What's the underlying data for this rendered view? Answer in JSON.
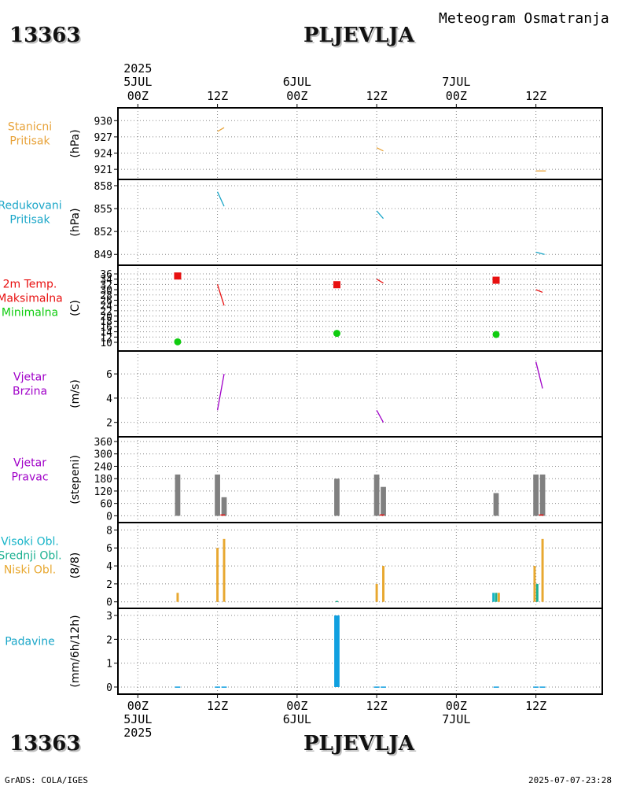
{
  "header": {
    "station_id": "13363",
    "station_name": "PLJEVLJA",
    "meteogram_title": "Meteogram Osmatranja"
  },
  "footer": {
    "left": "GrADS: COLA/IGES",
    "right": "2025-07-07-23:28"
  },
  "colors": {
    "pressure": "#e8a33a",
    "reduced": "#1aa6c8",
    "tmax": "#e81010",
    "tmin": "#10cc10",
    "wind": "#a000c8",
    "grey": "#808080",
    "high_cloud": "#16b4c8",
    "mid_cloud": "#1ab090",
    "low_cloud": "#e8a830",
    "precip": "#10a0e0"
  },
  "time_axis": {
    "top_year": "2025",
    "top_ticks": [
      {
        "t": 0,
        "lines": [
          "5JUL",
          "00Z"
        ]
      },
      {
        "t": 12,
        "lines": [
          "",
          "12Z"
        ]
      },
      {
        "t": 24,
        "lines": [
          "6JUL",
          "00Z"
        ]
      },
      {
        "t": 36,
        "lines": [
          "",
          "12Z"
        ]
      },
      {
        "t": 48,
        "lines": [
          "7JUL",
          "00Z"
        ]
      },
      {
        "t": 60,
        "lines": [
          "",
          "12Z"
        ]
      }
    ],
    "bottom_ticks": [
      {
        "t": 0,
        "lines": [
          "00Z",
          "5JUL",
          "2025"
        ]
      },
      {
        "t": 12,
        "lines": [
          "12Z"
        ]
      },
      {
        "t": 24,
        "lines": [
          "00Z",
          "6JUL"
        ]
      },
      {
        "t": 36,
        "lines": [
          "12Z"
        ]
      },
      {
        "t": 48,
        "lines": [
          "00Z",
          "7JUL"
        ]
      },
      {
        "t": 60,
        "lines": [
          "12Z"
        ]
      }
    ],
    "range_hours": [
      -3,
      70
    ]
  },
  "chart_data": [
    {
      "id": "p1",
      "type": "line",
      "label_lines": [
        "Stanicni",
        "Pritisak"
      ],
      "unit": "(hPa)",
      "label_color": "#e8a33a",
      "ylim": [
        920,
        931.5
      ],
      "yticks": [
        921,
        924,
        927,
        930
      ],
      "series": [
        {
          "name": "Stanicni Pritisak",
          "color": "#e8a33a",
          "segments": [
            [
              [
                12,
                928.0
              ],
              [
                13,
                928.7
              ]
            ],
            [
              [
                36,
                925.0
              ],
              [
                37,
                924.4
              ]
            ],
            [
              [
                60,
                920.7
              ],
              [
                61.5,
                920.7
              ]
            ]
          ]
        }
      ]
    },
    {
      "id": "p2",
      "type": "line",
      "label_lines": [
        "Redukovani",
        "Pritisak"
      ],
      "unit": "(hPa)",
      "label_color": "#1aa6c8",
      "ylim": [
        848.2,
        858.2
      ],
      "yticks": [
        849,
        852,
        855,
        858
      ],
      "series": [
        {
          "name": "Redukovani Pritisak",
          "color": "#1aa6c8",
          "segments": [
            [
              [
                12,
                857.2
              ],
              [
                13,
                855.3
              ]
            ],
            [
              [
                36,
                854.7
              ],
              [
                37,
                853.7
              ]
            ],
            [
              [
                60,
                849.3
              ],
              [
                61.3,
                849.0
              ]
            ]
          ]
        }
      ]
    },
    {
      "id": "p3",
      "type": "line",
      "label_lines": [
        "2m Temp.",
        "Maksimalna",
        "Minimalna"
      ],
      "unit": "(C)",
      "label_colors": [
        "#e81010",
        "#e81010",
        "#10cc10"
      ],
      "ylim": [
        8.5,
        37.5
      ],
      "yticks": [
        10,
        12,
        14,
        16,
        18,
        20,
        22,
        24,
        26,
        28,
        30,
        32,
        34,
        36
      ],
      "series": [
        {
          "name": "2m Temp.",
          "color": "#e81010",
          "segments": [
            [
              [
                12,
                32.0
              ],
              [
                13,
                24.0
              ]
            ],
            [
              [
                36,
                34.0
              ],
              [
                37,
                32.5
              ]
            ],
            [
              [
                60,
                30.0
              ],
              [
                61,
                29.0
              ]
            ]
          ]
        }
      ],
      "markers": [
        {
          "name": "Maksimalna",
          "shape": "square",
          "color": "#e81010",
          "points": [
            [
              6,
              35.2
            ],
            [
              30,
              31.9
            ],
            [
              54,
              33.6
            ]
          ]
        },
        {
          "name": "Minimalna",
          "shape": "circle",
          "color": "#10cc10",
          "points": [
            [
              6,
              10.2
            ],
            [
              30,
              13.4
            ],
            [
              54,
              13.0
            ]
          ]
        }
      ]
    },
    {
      "id": "p4",
      "type": "line",
      "label_lines": [
        "Vjetar",
        "Brzina"
      ],
      "unit": "(m/s)",
      "label_color": "#a000c8",
      "ylim": [
        1.2,
        7.5
      ],
      "yticks": [
        2,
        4,
        6
      ],
      "series": [
        {
          "name": "Vjetar Brzina",
          "color": "#a000c8",
          "segments": [
            [
              [
                12,
                3.0
              ],
              [
                13,
                6.0
              ]
            ],
            [
              [
                36,
                3.0
              ],
              [
                37,
                2.0
              ]
            ],
            [
              [
                60,
                7.0
              ],
              [
                61,
                4.8
              ]
            ]
          ]
        }
      ]
    },
    {
      "id": "p5",
      "type": "bar",
      "label_lines": [
        "Vjetar",
        "Pravac"
      ],
      "unit": "(stepeni)",
      "label_color": "#a000c8",
      "ylim": [
        -10,
        360
      ],
      "yticks": [
        0,
        60,
        120,
        180,
        240,
        300,
        360
      ],
      "bar_width_hours": 0.8,
      "bars": [
        {
          "t": 6,
          "v": 200,
          "color": "#808080"
        },
        {
          "t": 12,
          "v": 200,
          "color": "#808080"
        },
        {
          "t": 13,
          "v": 90,
          "color": "#808080"
        },
        {
          "t": 30,
          "v": 180,
          "color": "#808080"
        },
        {
          "t": 36,
          "v": 200,
          "color": "#808080"
        },
        {
          "t": 37,
          "v": 140,
          "color": "#808080"
        },
        {
          "t": 54,
          "v": 110,
          "color": "#808080"
        },
        {
          "t": 60,
          "v": 200,
          "color": "#808080"
        },
        {
          "t": 61,
          "v": 200,
          "color": "#808080"
        }
      ],
      "ticks_red": [
        12.8,
        36.8,
        60.8
      ]
    },
    {
      "id": "p6",
      "type": "bar",
      "label_lines": [
        "Visoki Obl.",
        "Srednji Obl.",
        "Niski Obl."
      ],
      "unit": "(8/8)",
      "label_colors": [
        "#16b4c8",
        "#1ab090",
        "#e8a830"
      ],
      "ylim": [
        -0.2,
        8.3
      ],
      "yticks": [
        0,
        2,
        4,
        6,
        8
      ],
      "bar_width_hours": 0.35,
      "bars": [
        {
          "t": 6,
          "v": 1,
          "color": "#e8a830"
        },
        {
          "t": 12,
          "v": 6,
          "color": "#e8a830"
        },
        {
          "t": 13,
          "v": 7,
          "color": "#e8a830"
        },
        {
          "t": 30,
          "v": 0.1,
          "color": "#1ab090"
        },
        {
          "t": 36,
          "v": 2,
          "color": "#e8a830"
        },
        {
          "t": 37,
          "v": 4,
          "color": "#e8a830"
        },
        {
          "t": 53.6,
          "v": 1,
          "color": "#16b4c8"
        },
        {
          "t": 54,
          "v": 1,
          "color": "#1ab090"
        },
        {
          "t": 54.4,
          "v": 1,
          "color": "#e8a830"
        },
        {
          "t": 59.8,
          "v": 4,
          "color": "#e8a830"
        },
        {
          "t": 60.2,
          "v": 2,
          "color": "#1ab090"
        },
        {
          "t": 61,
          "v": 7,
          "color": "#e8a830"
        }
      ]
    },
    {
      "id": "p7",
      "type": "bar",
      "label_lines": [
        "Padavine"
      ],
      "unit": "(mm/6h/12h)",
      "label_color": "#1aa6c8",
      "ylim": [
        -0.1,
        3.1
      ],
      "yticks": [
        0,
        1,
        2,
        3
      ],
      "bar_width_hours": 0.8,
      "bars": [
        {
          "t": 6,
          "v": 0.02,
          "color": "#10a0e0"
        },
        {
          "t": 12,
          "v": 0.02,
          "color": "#10a0e0"
        },
        {
          "t": 13,
          "v": 0.02,
          "color": "#10a0e0"
        },
        {
          "t": 30,
          "v": 3.0,
          "color": "#10a0e0"
        },
        {
          "t": 36,
          "v": 0.02,
          "color": "#10a0e0"
        },
        {
          "t": 37,
          "v": 0.02,
          "color": "#10a0e0"
        },
        {
          "t": 54,
          "v": 0.02,
          "color": "#10a0e0"
        },
        {
          "t": 60,
          "v": 0.02,
          "color": "#10a0e0"
        },
        {
          "t": 61,
          "v": 0.02,
          "color": "#10a0e0"
        }
      ]
    }
  ]
}
